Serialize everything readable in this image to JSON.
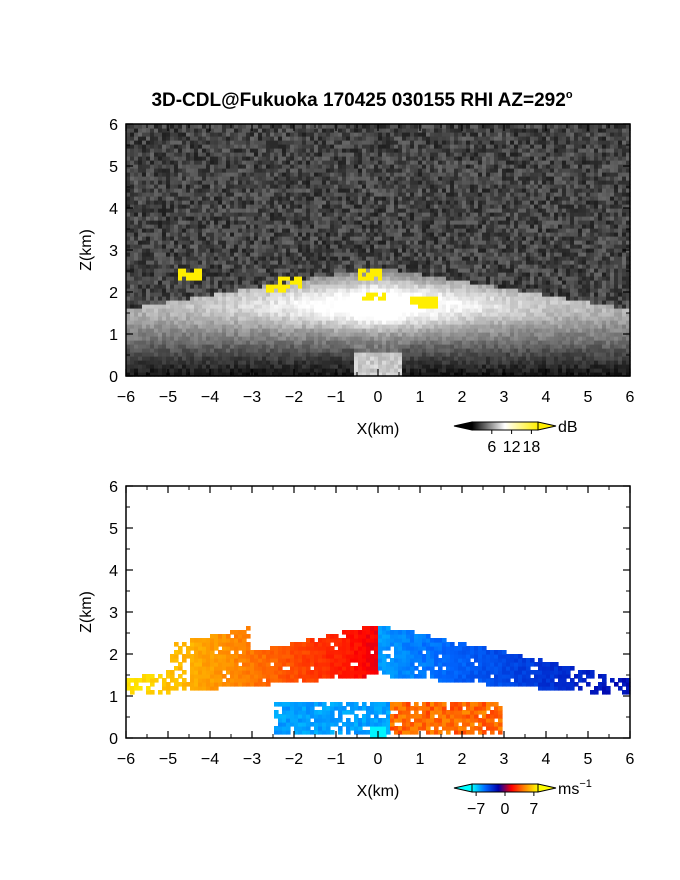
{
  "title": "3D-CDL@Fukuoka 170425 030155 RHI AZ=292",
  "title_sup": "o",
  "chart_data": [
    {
      "type": "heatmap",
      "name": "backscatter",
      "xlabel": "X(km)",
      "ylabel": "Z(km)",
      "xlim": [
        -6,
        6
      ],
      "ylim": [
        0,
        6
      ],
      "xticks": [
        -6,
        -5,
        -4,
        -3,
        -2,
        -1,
        0,
        1,
        2,
        3,
        4,
        5,
        6
      ],
      "yticks": [
        0,
        1,
        2,
        3,
        4,
        5,
        6
      ],
      "colorbar": {
        "unit": "dB",
        "ticks": [
          6,
          12,
          18
        ],
        "range": [
          0,
          20
        ],
        "colors": [
          "#000000",
          "#ffffff",
          "#ffee00"
        ]
      },
      "features": {
        "layer_top_km_at_center": 2.6,
        "layer_top_km_at_edges": 1.6,
        "bright_core_km": [
          1.2,
          2.2
        ],
        "saturated_patches_km": [
          {
            "x": -4.5,
            "z": 2.45
          },
          {
            "x": -2.5,
            "z": 2.1
          },
          {
            "x": -2.1,
            "z": 2.25
          },
          {
            "x": -0.2,
            "z": 2.45
          },
          {
            "x": -0.1,
            "z": 1.9
          },
          {
            "x": 1.1,
            "z": 1.75
          }
        ]
      }
    },
    {
      "type": "heatmap",
      "name": "doppler_velocity",
      "xlabel": "X(km)",
      "ylabel": "Z(km)",
      "xlim": [
        -6,
        6
      ],
      "ylim": [
        0,
        6
      ],
      "xticks": [
        -6,
        -5,
        -4,
        -3,
        -2,
        -1,
        0,
        1,
        2,
        3,
        4,
        5,
        6
      ],
      "yticks": [
        0,
        1,
        2,
        3,
        4,
        5,
        6
      ],
      "colorbar": {
        "unit": "ms",
        "unit_sup": "−1",
        "tick_labels": [
          "−7",
          "0",
          "7"
        ],
        "range": [
          -8,
          8
        ],
        "colors": [
          "#00ffff",
          "#0066ff",
          "#0000aa",
          "#ff0000",
          "#ff8800",
          "#ffff00"
        ]
      },
      "features": {
        "approaching_side": "left",
        "receding_side": "right",
        "upper_layer_km": [
          1.3,
          2.7
        ],
        "lower_layer_km": [
          0.1,
          0.9
        ]
      }
    }
  ]
}
